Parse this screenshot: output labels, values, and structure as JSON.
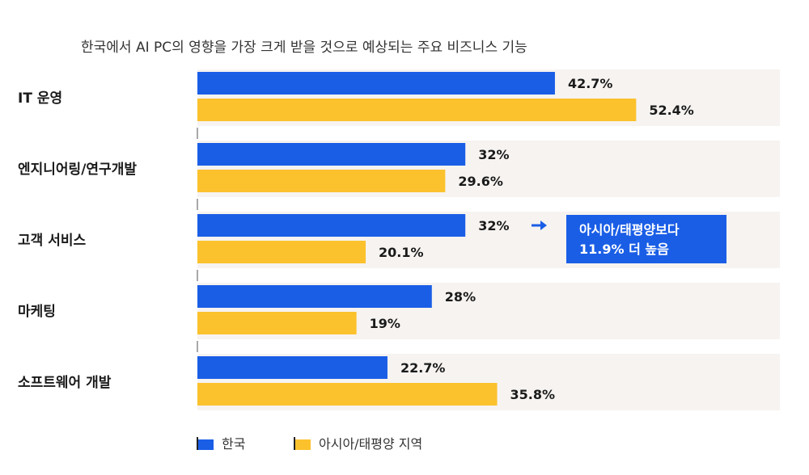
{
  "chart_data": {
    "type": "bar",
    "orientation": "horizontal",
    "title": "한국에서 AI PC의 영향을 가장 크게 받을 것으로 예상되는 주요 비즈니스 기능",
    "categories": [
      "IT 운영",
      "엔지니어링/연구개발",
      "고객 서비스",
      "마케팅",
      "소프트웨어 개발"
    ],
    "series": [
      {
        "name": "한국",
        "color": "#1a5ee6",
        "values": [
          42.7,
          32,
          32,
          28,
          22.7
        ],
        "labels": [
          "42.7%",
          "32%",
          "32%",
          "28%",
          "22.7%"
        ]
      },
      {
        "name": "아시아/태평양 지역",
        "color": "#fcc22d",
        "values": [
          52.4,
          29.6,
          20.1,
          19,
          35.8
        ],
        "labels": [
          "52.4%",
          "29.6%",
          "20.1%",
          "19%",
          "35.8%"
        ]
      }
    ],
    "xlim": [
      0,
      60
    ],
    "grid": false,
    "legend_position": "bottom-left",
    "category_band_color": "#f6f3f1",
    "annotation": {
      "category_index": 2,
      "lines": [
        "아시아/태평양보다",
        "11.9% 더 높음"
      ],
      "color": "#1a5ee6",
      "arrow_icon": "arrow-right-icon"
    }
  }
}
